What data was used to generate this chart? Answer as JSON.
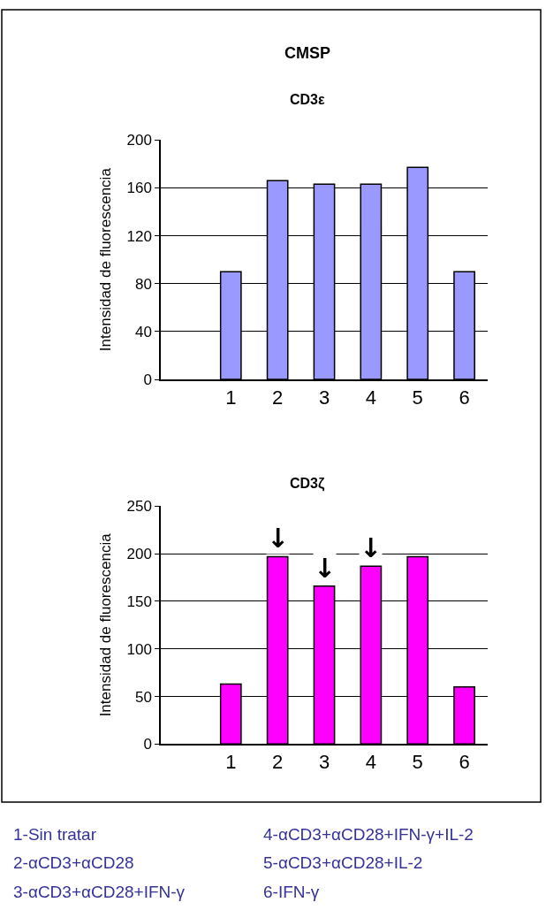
{
  "chart_data": [
    {
      "type": "bar",
      "title": "CMSP",
      "subtitle": "CD3ε",
      "ylabel": "Intensidad de fluorescencia",
      "categories": [
        null,
        "1",
        "2",
        "3",
        "4",
        "5",
        "6"
      ],
      "values": [
        null,
        90,
        166,
        163,
        163,
        177,
        90
      ],
      "color": "#9999ff",
      "ylim": [
        0,
        200
      ],
      "yticks": [
        0,
        40,
        80,
        120,
        160,
        200
      ],
      "grid": "y",
      "legend": false
    },
    {
      "type": "bar",
      "title": "CD3ζ",
      "ylabel": "Intensidad de fluorescencia",
      "categories": [
        null,
        "1",
        "2",
        "3",
        "4",
        "5",
        "6"
      ],
      "values": [
        null,
        63,
        197,
        166,
        187,
        197,
        60
      ],
      "color": "#ff00ff",
      "ylim": [
        0,
        250
      ],
      "yticks": [
        0,
        50,
        100,
        150,
        200,
        250
      ],
      "grid": "y",
      "legend": false,
      "annotations": [
        {
          "text": "↓",
          "x": "2",
          "y": 197
        },
        {
          "text": "↓",
          "x": "3",
          "y": 166
        },
        {
          "text": "↓",
          "x": "4",
          "y": 187
        },
        "1-Sin tratar",
        "2-αCD3+αCD28",
        "3-αCD3+αCD28+IFN-γ",
        "4-αCD3+αCD28+IFN-γ+IL-2",
        "5-αCD3+αCD28+IL-2",
        "6-IFN-γ"
      ]
    }
  ]
}
